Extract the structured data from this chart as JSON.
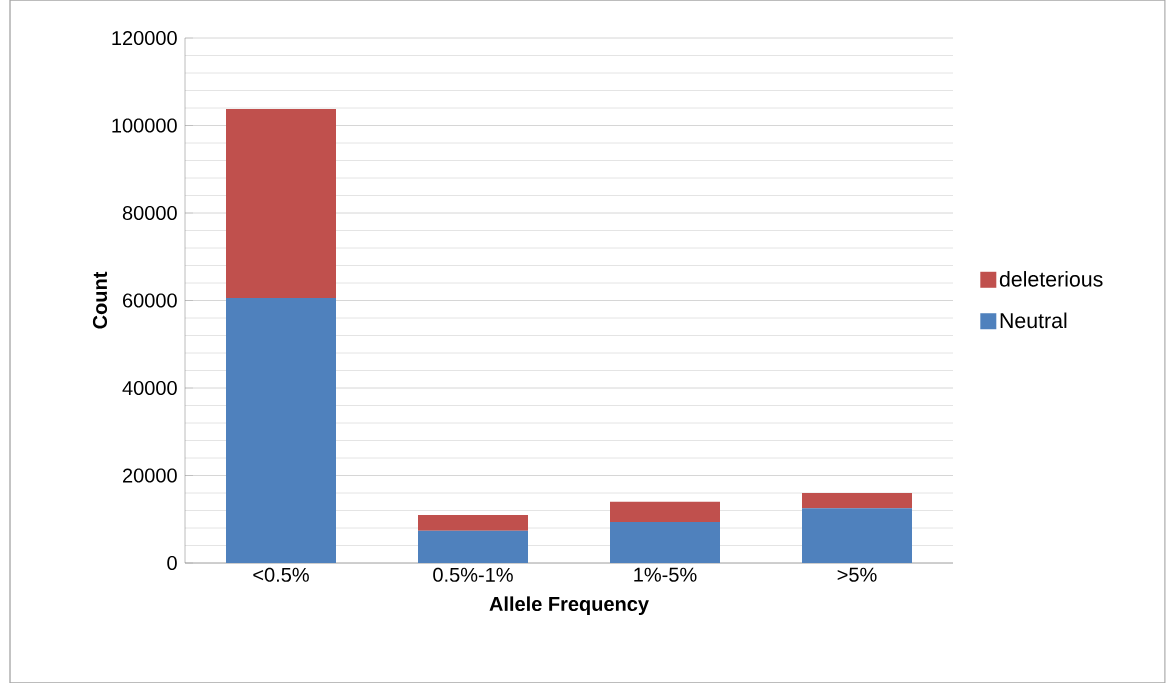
{
  "chart_data": {
    "type": "bar",
    "stacked": true,
    "xlabel": "Allele Frequency",
    "ylabel": "Count",
    "categories": [
      "<0.5%",
      "0.5%-1%",
      "1%-5%",
      ">5%"
    ],
    "series": [
      {
        "name": "Neutral",
        "color": "#4f81bd",
        "values": [
          60600,
          7400,
          9400,
          12500
        ]
      },
      {
        "name": "deleterious",
        "color": "#c0504d",
        "values": [
          43200,
          3600,
          4600,
          3500
        ]
      }
    ],
    "ylim": [
      0,
      120000
    ],
    "yticks": [
      0,
      20000,
      40000,
      60000,
      80000,
      100000,
      120000
    ],
    "grid": "y",
    "legend": "right"
  }
}
